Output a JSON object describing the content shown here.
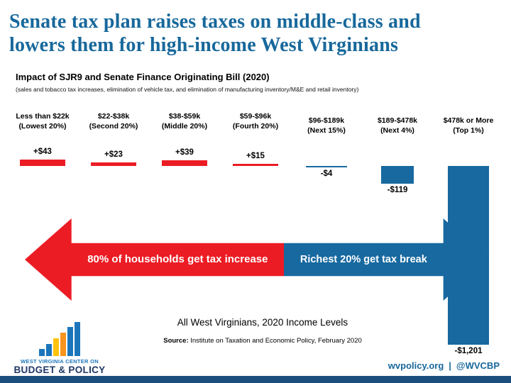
{
  "title": "Senate tax plan raises taxes on middle-class and\nlowers them for high-income West Virginians",
  "subtitle": "Impact of SJR9 and Senate Finance Originating Bill (2020)",
  "note": "(sales and tobacco tax increases, elimination of vehicle tax, and elimination of manufacturing inventory/M&E and retail inventory)",
  "chart_data": {
    "type": "bar",
    "title": "Impact of SJR9 and Senate Finance Originating Bill (2020)",
    "categories": [
      "Less than $22k (Lowest 20%)",
      "$22-$38k (Second 20%)",
      "$38-$59k (Middle 20%)",
      "$59-$96k (Fourth 20%)",
      "$96-$189k (Next 15%)",
      "$189-$478k (Next 4%)",
      "$478k or More (Top 1%)"
    ],
    "values": [
      43,
      23,
      39,
      15,
      -4,
      -119,
      -1201
    ],
    "labels": [
      "+$43",
      "+$23",
      "+$39",
      "+$15",
      "-$4",
      "-$119",
      "-$1,201"
    ],
    "columns": [
      {
        "line1": "Less than $22k",
        "line2": "(Lowest 20%)",
        "value": 43,
        "label": "+$43"
      },
      {
        "line1": "$22-$38k",
        "line2": "(Second 20%)",
        "value": 23,
        "label": "+$23"
      },
      {
        "line1": "$38-$59k",
        "line2": "(Middle 20%)",
        "value": 39,
        "label": "+$39"
      },
      {
        "line1": "$59-$96k",
        "line2": "(Fourth 20%)",
        "value": 15,
        "label": "+$15"
      },
      {
        "line1": "$96-$189k",
        "line2": "(Next 15%)",
        "value": -4,
        "label": "-$4"
      },
      {
        "line1": "$189-$478k",
        "line2": "(Next 4%)",
        "value": -119,
        "label": "-$119"
      },
      {
        "line1": "$478k or More",
        "line2": "(Top 1%)",
        "value": -1201,
        "label": "-$1,201"
      }
    ],
    "positive_color": "#EC1C24",
    "negative_color": "#1769A0",
    "ylim": [
      -1300,
      100
    ],
    "grid": false,
    "legend": null
  },
  "arrows": {
    "left": {
      "label": "80% of households get tax increase",
      "color": "#EC1C24"
    },
    "right": {
      "label": "Richest 20% get tax break",
      "color": "#1769A0"
    }
  },
  "footer": {
    "caption": "All West Virginians, 2020 Income Levels",
    "source_label": "Source:",
    "source_text": " Institute on Taxation and Economic Policy, February 2020",
    "website": "wvpolicy.org",
    "separator": "|",
    "handle": "@WVCBP"
  },
  "logo": {
    "org_line1": "WEST VIRGINIA CENTER ON",
    "org_line2": "BUDGET & POLICY",
    "bars": [
      {
        "h": 10,
        "color": "#1B75BB"
      },
      {
        "h": 17,
        "color": "#1B75BB"
      },
      {
        "h": 25,
        "color": "#FFC20E"
      },
      {
        "h": 33,
        "color": "#F7941D"
      },
      {
        "h": 41,
        "color": "#1B75BB"
      },
      {
        "h": 48,
        "color": "#1B75BB"
      }
    ]
  },
  "colors": {
    "title": "#17689B",
    "accent_red": "#EC1C24",
    "accent_blue": "#1769A0",
    "bottom_bar": "#1C4E7D",
    "logo_blue": "#1B75BB",
    "logo_navy": "#203864"
  }
}
